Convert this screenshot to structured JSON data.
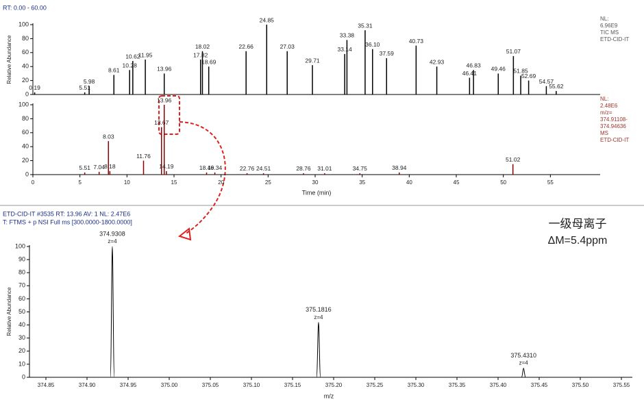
{
  "chart_data": [
    {
      "type": "stick",
      "header": "RT: 0.00 - 60.00",
      "ylabel": "Relative Abundance",
      "info": [
        "NL:",
        "6.96E9",
        "TIC MS",
        "ETD-CID-IT"
      ],
      "color": "#000000",
      "info_color": "#555555",
      "xlim": [
        0,
        60
      ],
      "ylim": [
        0,
        100
      ],
      "yticks": [
        0,
        20,
        40,
        60,
        80,
        100
      ],
      "x": [
        0.19,
        5.51,
        5.98,
        8.61,
        10.28,
        10.62,
        11.95,
        13.96,
        17.82,
        18.02,
        18.69,
        22.66,
        24.85,
        27.03,
        29.71,
        33.14,
        33.38,
        35.31,
        36.1,
        37.59,
        40.73,
        42.93,
        46.41,
        46.83,
        49.46,
        51.07,
        51.85,
        52.69,
        54.57,
        55.62
      ],
      "x_labels": [
        "0.19",
        "5.51",
        "5.98",
        "8.61",
        "10.28",
        "10.62",
        "11.95",
        "13.96",
        "17.82",
        "18.02",
        "18.69",
        "22.66",
        "24.85",
        "27.03",
        "29.71",
        "33.14",
        "33.38",
        "35.31",
        "36.10",
        "37.59",
        "40.73",
        "42.93",
        "46.41",
        "46.83",
        "49.46",
        "51.07",
        "51.85",
        "52.69",
        "54.57",
        "55.62"
      ],
      "values": [
        3,
        3,
        12,
        28,
        35,
        48,
        50,
        30,
        50,
        62,
        40,
        62,
        100,
        62,
        42,
        58,
        78,
        92,
        65,
        52,
        70,
        40,
        24,
        35,
        30,
        55,
        27,
        20,
        12,
        5
      ]
    },
    {
      "type": "stick",
      "xlabel": "Time (min)",
      "info": [
        "NL:",
        "2.48E6",
        "m/z=",
        "374.91108-",
        "374.94636",
        "MS",
        "ETD-CID-IT"
      ],
      "color": "#8b0000",
      "info_color": "#a0342a",
      "xlim": [
        0,
        60
      ],
      "ylim": [
        0,
        100
      ],
      "yticks": [
        0,
        20,
        40,
        60,
        80,
        100
      ],
      "xticks": [
        0,
        5,
        10,
        15,
        20,
        25,
        30,
        35,
        40,
        45,
        50,
        55
      ],
      "x": [
        5.51,
        7.04,
        8.03,
        8.18,
        11.76,
        13.67,
        13.96,
        14.19,
        18.46,
        19.34,
        22.76,
        24.51,
        28.76,
        31.01,
        34.75,
        38.94,
        51.02
      ],
      "x_labels": [
        "5.51",
        "7.04",
        "8.03",
        "8.18",
        "11.76",
        "13.67",
        "13.96",
        "14.19",
        "18.46",
        "19.34",
        "22.76",
        "24.51",
        "28.76",
        "31.01",
        "34.75",
        "38.94",
        "51.02"
      ],
      "values": [
        3,
        4,
        48,
        5,
        20,
        68,
        100,
        5,
        3,
        3,
        2,
        2,
        2,
        2,
        2,
        3,
        15
      ]
    },
    {
      "type": "spectrum",
      "header": "ETD-CID-IT #3535  RT: 13.96  AV: 1  NL: 2.47E6",
      "subheader": "T: FTMS + p NSI Full ms [300.0000-1800.0000]",
      "annotation": [
        "一级母离子",
        "ΔM=5.4ppm"
      ],
      "ylabel": "Relative Abundance",
      "xlabel": "m/z",
      "color": "#000000",
      "xlim": [
        374.83,
        375.56
      ],
      "ylim": [
        0,
        100
      ],
      "yticks": [
        0,
        10,
        20,
        30,
        40,
        50,
        60,
        70,
        80,
        90,
        100
      ],
      "xticks": [
        374.85,
        {
          "value": 374.9,
          "label": "374.90"
        },
        374.95,
        {
          "value": 375.0,
          "label": "375.00"
        },
        375.05,
        {
          "value": 375.1,
          "label": "375.10"
        },
        375.15,
        {
          "value": 375.2,
          "label": "375.20"
        },
        375.25,
        {
          "value": 375.3,
          "label": "375.30"
        },
        375.35,
        {
          "value": 375.4,
          "label": "375.40"
        },
        375.45,
        {
          "value": 375.5,
          "label": "375.50"
        },
        375.55
      ],
      "x": [
        374.9308,
        375.1816,
        375.431
      ],
      "x_labels": [
        "374.9308",
        "375.1816",
        "375.4310"
      ],
      "charge_labels": [
        "z=4",
        "z=4",
        "z=4"
      ],
      "values": [
        100,
        42,
        7
      ]
    }
  ]
}
